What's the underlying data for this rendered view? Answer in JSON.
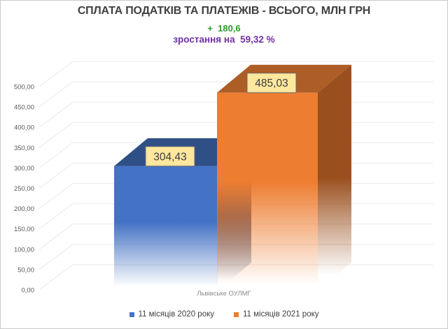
{
  "header": {
    "title": "СПЛАТА ПОДАТКІВ ТА ПЛАТЕЖІВ - ВСЬОГО, МЛН ГРН",
    "delta_label": "+  180,6",
    "growth_label": "зростання на  59,32 %"
  },
  "chart_data": {
    "type": "bar",
    "style": "3d-column",
    "title": "СПЛАТА ПОДАТКІВ ТА ПЛАТЕЖІВ - ВСЬОГО, МЛН ГРН",
    "annotations": [
      "+  180,6",
      "зростання на  59,32 %"
    ],
    "categories": [
      ""
    ],
    "series": [
      {
        "name": "11 місяців 2020 року",
        "values": [
          304.43
        ],
        "data_label": "304,43",
        "color": "#4472c4",
        "color_top": "#2f4f87",
        "color_side": "#2a4678"
      },
      {
        "name": "11 місяців 2021 року",
        "values": [
          485.03
        ],
        "data_label": "485,03",
        "color": "#ed7d31",
        "color_top": "#ad5d26",
        "color_side": "#9a501e"
      }
    ],
    "ylim": [
      0,
      500
    ],
    "ytick_step": 50,
    "yticks": [
      "0,00",
      "50,00",
      "100,00",
      "150,00",
      "200,00",
      "250,00",
      "300,00",
      "350,00",
      "400,00",
      "450,00",
      "500,00"
    ],
    "grid": true,
    "legend_position": "bottom",
    "source_note": "Львівське ОУЛМГ"
  },
  "footer": {
    "watermark": "Львівське ОУЛМГ"
  },
  "colors": {
    "title": "#404040",
    "delta_green": "#2e9b2e",
    "growth_purple": "#7030a0",
    "gridline": "#e9e9e9",
    "tick_text": "#595959",
    "data_label_bg": "#ffe79e",
    "data_label_border": "#6b6b6b",
    "data_label_text": "#3d3d3d",
    "legend_text": "#404040",
    "watermark_text": "#8a8a8a",
    "canvas_border": "#c9c9c9"
  }
}
